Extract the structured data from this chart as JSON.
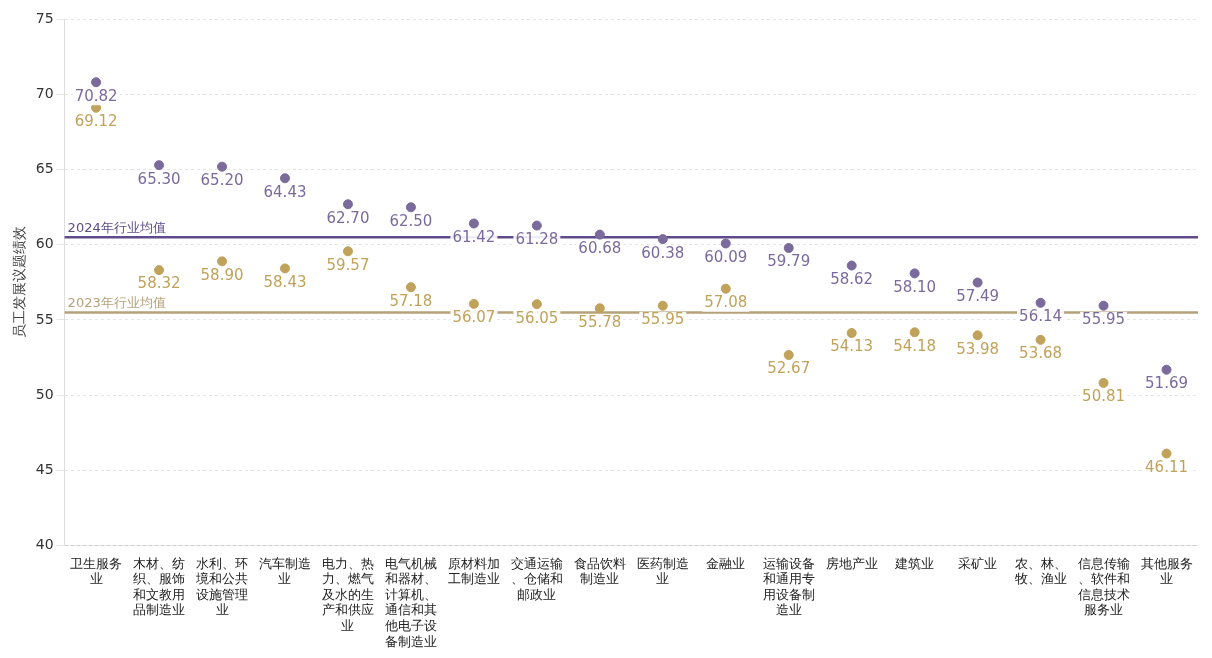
{
  "chart_data": {
    "type": "scatter",
    "ylabel": "员工发展议题绩效",
    "categories": [
      "卫生服务业",
      "木材、纺织、服饰和文教用品制造业",
      "水利、环境和公共设施管理业",
      "汽车制造业",
      "电力、热力、燃气及水的生产和供应业",
      "电气机械和器材、计算机、通信和其他电子设备制造业",
      "原材料加工制造业",
      "交通运输、仓储和邮政业",
      "食品饮料制造业",
      "医药制造业",
      "金融业",
      "运输设备和通用专用设备制造业",
      "房地产业",
      "建筑业",
      "采矿业",
      "农、林、牧、渔业",
      "信息传输、软件和信息技术服务业",
      "其他服务业"
    ],
    "series": [
      {
        "color": "#7b6a9c",
        "values": [
          70.82,
          65.3,
          65.2,
          64.43,
          62.7,
          62.5,
          61.42,
          61.28,
          60.68,
          60.38,
          60.09,
          59.79,
          58.62,
          58.1,
          57.49,
          56.14,
          55.95,
          51.69
        ],
        "value_labels": [
          "70.82",
          "65.30",
          "65.20",
          "64.43",
          "62.70",
          "62.50",
          "61.42",
          "61.28",
          "60.68",
          "60.38",
          "60.09",
          "59.79",
          "58.62",
          "58.10",
          "57.49",
          "56.14",
          "55.95",
          "51.69"
        ]
      },
      {
        "color": "#c0a25a",
        "values": [
          69.12,
          58.32,
          58.9,
          58.43,
          59.57,
          57.18,
          56.07,
          56.05,
          55.78,
          55.95,
          57.08,
          52.67,
          54.13,
          54.18,
          53.98,
          53.68,
          50.81,
          46.11
        ],
        "value_labels": [
          "69.12",
          "58.32",
          "58.90",
          "58.43",
          "59.57",
          "57.18",
          "56.07",
          "56.05",
          "55.78",
          "55.95",
          "57.08",
          "52.67",
          "54.13",
          "54.18",
          "53.98",
          "53.68",
          "50.81",
          "46.11"
        ]
      }
    ],
    "ref_lines": [
      {
        "axis": "y",
        "value": 60.5,
        "label": "2024年行业均值",
        "color": "#5e4b8b"
      },
      {
        "axis": "y",
        "value": 55.5,
        "label": "2023年行业均值",
        "color": "#b5a17a"
      }
    ],
    "ylim": [
      40,
      75
    ],
    "yticks": [
      40,
      45,
      50,
      55,
      60,
      65,
      70,
      75
    ],
    "grid": "y",
    "marker": "circle",
    "legend": false
  }
}
